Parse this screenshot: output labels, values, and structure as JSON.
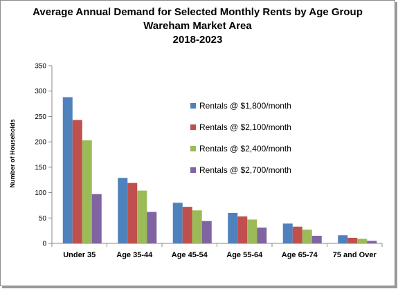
{
  "chart_data": {
    "type": "bar",
    "title_lines": [
      "Average Annual Demand for Selected Monthly Rents by Age Group",
      "Wareham Market Area",
      "2018-2023"
    ],
    "ylabel": "Number of Households",
    "xlabel": "",
    "ylim": [
      0,
      350
    ],
    "yticks": [
      0,
      50,
      100,
      150,
      200,
      250,
      300,
      350
    ],
    "grid": false,
    "legend_position": "right-inside",
    "categories": [
      "Under 35",
      "Age 35-44",
      "Age 45-54",
      "Age 55-64",
      "Age 65-74",
      "75 and Over"
    ],
    "series": [
      {
        "name": "Rentals @ $1,800/month",
        "color": "#4f81bd",
        "values": [
          288,
          129,
          80,
          60,
          39,
          16
        ]
      },
      {
        "name": "Rentals @ $2,100/month",
        "color": "#c0504d",
        "values": [
          243,
          119,
          72,
          53,
          33,
          11
        ]
      },
      {
        "name": "Rentals @ $2,400/month",
        "color": "#9bbb59",
        "values": [
          203,
          104,
          65,
          47,
          27,
          9
        ]
      },
      {
        "name": "Rentals @ $2,700/month",
        "color": "#8064a2",
        "values": [
          97,
          62,
          44,
          31,
          15,
          5
        ]
      }
    ]
  }
}
